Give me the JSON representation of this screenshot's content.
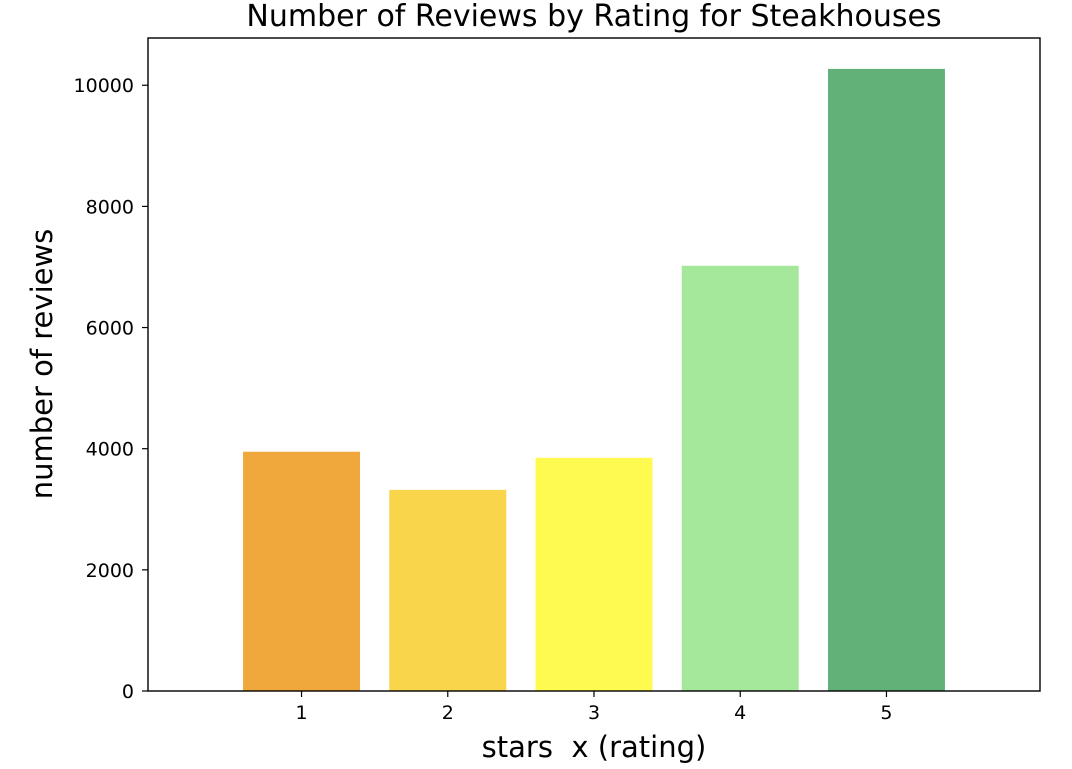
{
  "chart_data": {
    "type": "bar",
    "title": "Number of Reviews by Rating for Steakhouses",
    "xlabel": "stars  x (rating)",
    "ylabel": "number of reviews",
    "categories": [
      "1",
      "2",
      "3",
      "4",
      "5"
    ],
    "values": [
      3950,
      3320,
      3850,
      7020,
      10270
    ],
    "colors": [
      "#f0a83c",
      "#f8d54a",
      "#fffa50",
      "#a5e79b",
      "#62b178"
    ],
    "ylim": [
      0,
      10780
    ],
    "yticks": [
      0,
      2000,
      4000,
      6000,
      8000,
      10000
    ],
    "ytick_labels": [
      "0",
      "2000",
      "4000",
      "6000",
      "8000",
      "10000"
    ],
    "grid": false,
    "legend": "none"
  }
}
